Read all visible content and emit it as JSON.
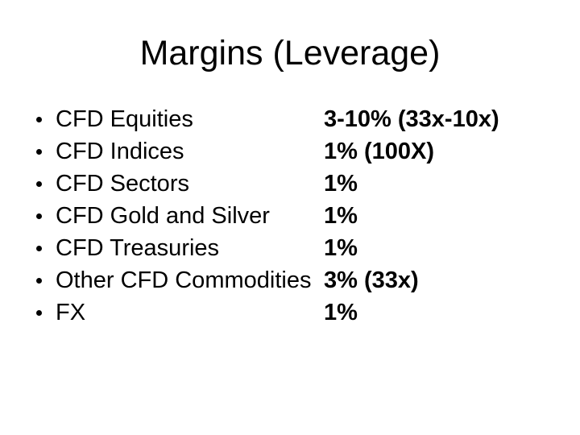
{
  "slide": {
    "title": "Margins (Leverage)",
    "background_color": "#ffffff",
    "text_color": "#000000",
    "bullet_char": "•"
  },
  "margin_table": {
    "items": [
      {
        "label": "CFD Equities",
        "value": "3-10% (33x-10x)"
      },
      {
        "label": "CFD Indices",
        "value": "1% (100X)"
      },
      {
        "label": "CFD Sectors",
        "value": "1%"
      },
      {
        "label": "CFD Gold and Silver",
        "value": "1%"
      },
      {
        "label": "CFD Treasuries",
        "value": "1%"
      },
      {
        "label": "Other CFD Commodities",
        "value": "3% (33x)"
      },
      {
        "label": "FX",
        "value": "1%"
      }
    ]
  }
}
